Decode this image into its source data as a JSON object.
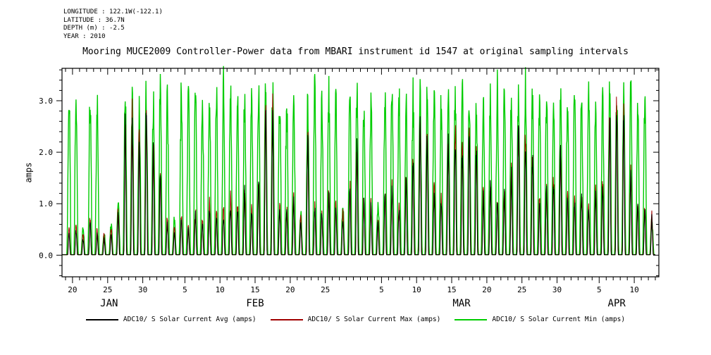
{
  "header": {
    "metadata_lines": [
      "LONGITUDE : 122.1W(-122.1)",
      "LATITUDE : 36.7N",
      "DEPTH (m) : -2.5",
      "YEAR : 2010"
    ],
    "title": "Mooring MUCE2009 Controller-Power data from MBARI instrument id 1547 at original sampling intervals"
  },
  "axes": {
    "ylabel": "amps"
  },
  "legend": {
    "items": [
      {
        "label": "ADC10/ S Solar Current Avg (amps)",
        "color": "#000000"
      },
      {
        "label": "ADC10/ S Solar Current Max (amps)",
        "color": "#a00000"
      },
      {
        "label": "ADC10/ S Solar Current Min (amps)",
        "color": "#00cc00"
      }
    ]
  },
  "chart_data": {
    "type": "line",
    "title": "Mooring MUCE2009 Controller-Power data from MBARI instrument id 1547 at original sampling intervals",
    "ylabel": "amps",
    "ylim": [
      -0.42,
      3.63
    ],
    "ytick_labels": [
      "0.0",
      "1.0",
      "2.0",
      "3.0"
    ],
    "ytick_major": [
      0,
      1,
      2,
      3
    ],
    "ytick_minor_step": 0.2,
    "x_unit": "days since 2010-01-19",
    "start_date": "2010-01-19",
    "end_date": "2010-04-12",
    "xlim_days": [
      -0.5,
      84.5
    ],
    "xticks": [
      {
        "day": 1,
        "label": "20"
      },
      {
        "day": 6,
        "label": "25"
      },
      {
        "day": 11,
        "label": "30"
      },
      {
        "day": 17,
        "label": "5"
      },
      {
        "day": 22,
        "label": "10"
      },
      {
        "day": 27,
        "label": "15"
      },
      {
        "day": 32,
        "label": "20"
      },
      {
        "day": 37,
        "label": "25"
      },
      {
        "day": 45,
        "label": "5"
      },
      {
        "day": 50,
        "label": "10"
      },
      {
        "day": 55,
        "label": "15"
      },
      {
        "day": 60,
        "label": "20"
      },
      {
        "day": 65,
        "label": "25"
      },
      {
        "day": 70,
        "label": "30"
      },
      {
        "day": 76,
        "label": "5"
      },
      {
        "day": 81,
        "label": "10"
      }
    ],
    "month_labels": [
      {
        "day": 6.2,
        "label": "JAN"
      },
      {
        "day": 27.0,
        "label": "FEB"
      },
      {
        "day": 56.4,
        "label": "MAR"
      },
      {
        "day": 78.5,
        "label": "APR"
      }
    ],
    "draw_order": [
      2,
      1,
      0
    ],
    "series": [
      {
        "name": "ADC10/ S Solar Current Avg (amps)",
        "short": "avg",
        "color": "#000000",
        "stroke_width": 1,
        "spike_width": 0.4,
        "daily_peaks": [
          0.4,
          0.5,
          0.3,
          0.6,
          0.4,
          0.3,
          0.4,
          0.8,
          2.4,
          2.6,
          2.2,
          2.8,
          2.0,
          1.5,
          0.6,
          0.4,
          0.7,
          0.5,
          0.8,
          0.6,
          0.9,
          0.7,
          0.8,
          1.0,
          0.9,
          1.2,
          0.8,
          1.4,
          2.9,
          2.7,
          0.9,
          0.8,
          1.0,
          0.6,
          2.2,
          0.9,
          0.8,
          1.1,
          0.9,
          0.7,
          1.3,
          2.0,
          1.0,
          0.9,
          0.6,
          1.1,
          1.2,
          0.9,
          1.4,
          1.8,
          2.5,
          2.3,
          1.2,
          1.0,
          2.2,
          2.4,
          1.9,
          2.3,
          2.1,
          1.1,
          1.3,
          1.0,
          1.2,
          1.5,
          2.4,
          2.2,
          1.9,
          1.0,
          1.2,
          1.4,
          2.0,
          1.1,
          1.0,
          1.2,
          0.9,
          1.1,
          1.3,
          2.6,
          2.9,
          2.8,
          1.5,
          1.0,
          0.9,
          0.7
        ]
      },
      {
        "name": "ADC10/ S Solar Current Max (amps)",
        "short": "max",
        "color": "#a00000",
        "stroke_width": 1,
        "spike_width": 0.44,
        "daily_peaks": [
          0.5,
          0.6,
          0.4,
          0.7,
          0.5,
          0.4,
          0.5,
          0.9,
          2.5,
          2.7,
          2.3,
          2.9,
          2.1,
          1.6,
          0.7,
          0.5,
          0.8,
          0.6,
          0.9,
          0.7,
          1.0,
          0.8,
          0.9,
          1.1,
          1.0,
          1.3,
          0.9,
          1.5,
          3.0,
          2.8,
          1.0,
          0.9,
          1.1,
          0.7,
          2.3,
          1.0,
          0.9,
          1.2,
          1.0,
          0.8,
          1.4,
          2.1,
          1.1,
          1.0,
          0.7,
          1.2,
          1.3,
          1.0,
          1.5,
          1.9,
          2.6,
          2.4,
          1.3,
          1.1,
          2.3,
          2.5,
          2.0,
          2.4,
          2.2,
          1.2,
          1.4,
          1.1,
          1.3,
          1.6,
          2.5,
          2.3,
          2.0,
          1.1,
          1.3,
          1.5,
          2.1,
          1.2,
          1.1,
          1.3,
          1.0,
          1.2,
          1.4,
          2.7,
          3.0,
          2.9,
          1.6,
          1.1,
          1.0,
          0.8
        ]
      },
      {
        "name": "ADC10/ S Solar Current Min (amps)",
        "short": "min",
        "color": "#00cc00",
        "stroke_width": 1.4,
        "spike_width": 0.62,
        "daily_peaks": [
          3.0,
          2.95,
          0.5,
          3.05,
          2.9,
          0.45,
          0.6,
          1.1,
          3.15,
          3.05,
          2.95,
          3.1,
          2.9,
          3.2,
          3.0,
          0.7,
          3.1,
          2.95,
          3.15,
          2.9,
          3.0,
          3.1,
          3.2,
          3.0,
          2.9,
          3.1,
          3.0,
          3.15,
          3.25,
          3.1,
          3.0,
          2.9,
          3.05,
          0.8,
          3.0,
          3.15,
          2.85,
          3.05,
          3.0,
          0.9,
          3.15,
          3.05,
          2.9,
          3.0,
          1.0,
          3.05,
          3.15,
          3.0,
          2.9,
          3.05,
          3.0,
          3.15,
          3.05,
          2.85,
          3.0,
          3.1,
          3.2,
          3.0,
          2.9,
          3.05,
          3.0,
          3.15,
          3.05,
          3.0,
          2.9,
          3.2,
          3.1,
          3.0,
          3.05,
          2.9,
          3.0,
          3.15,
          3.05,
          3.0,
          3.2,
          2.9,
          3.0,
          3.1,
          3.15,
          3.25,
          3.1,
          2.9,
          3.0,
          0.7
        ]
      }
    ]
  }
}
